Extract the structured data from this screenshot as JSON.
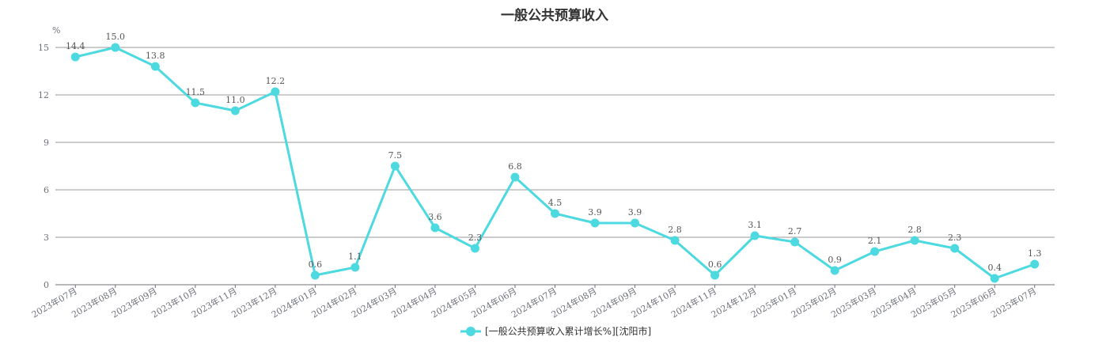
{
  "chart_data": {
    "type": "line",
    "title": "一般公共预算收入",
    "yunit": "%",
    "ylim": [
      0,
      15
    ],
    "yticks": [
      0,
      3,
      6,
      9,
      12,
      15
    ],
    "grid": true,
    "legend_position": "bottom-center",
    "categories": [
      "2023年07月",
      "2023年08月",
      "2023年09月",
      "2023年10月",
      "2023年11月",
      "2023年12月",
      "2024年01月",
      "2024年02月",
      "2024年03月",
      "2024年04月",
      "2024年05月",
      "2024年06月",
      "2024年07月",
      "2024年08月",
      "2024年09月",
      "2024年10月",
      "2024年11月",
      "2024年12月",
      "2025年01月",
      "2025年02月",
      "2025年03月",
      "2025年04月",
      "2025年05月",
      "2025年06月",
      "2025年07月"
    ],
    "series": [
      {
        "name": "[一般公共预算收入累计增长%][沈阳市]",
        "color": "#4dd9e0",
        "values": [
          14.4,
          15.0,
          13.8,
          11.5,
          11.0,
          12.2,
          0.6,
          1.1,
          7.5,
          3.6,
          2.3,
          6.8,
          4.5,
          3.9,
          3.9,
          2.8,
          0.6,
          3.1,
          2.7,
          0.9,
          2.1,
          2.8,
          2.3,
          0.4,
          1.3
        ],
        "labels": [
          "14.4",
          "15.0",
          "13.8",
          "11.5",
          "11.0",
          "12.2",
          "0.6",
          "1.1",
          "7.5",
          "3.6",
          "2.3",
          "6.8",
          "4.5",
          "3.9",
          "3.9",
          "2.8",
          "0.6",
          "3.1",
          "2.7",
          "0.9",
          "2.1",
          "2.8",
          "2.3",
          "0.4",
          "1.3"
        ]
      }
    ]
  }
}
